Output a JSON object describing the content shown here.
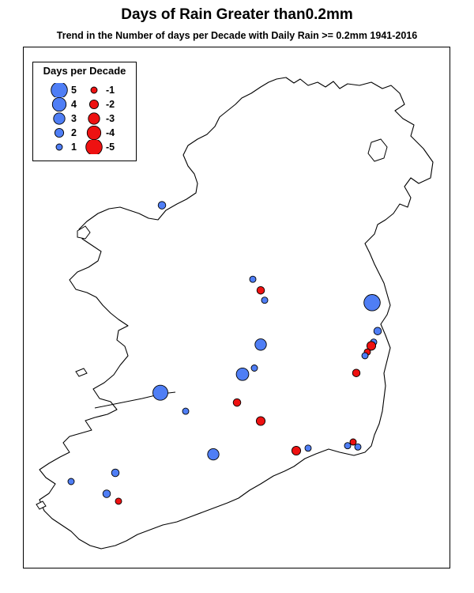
{
  "title": "Days of Rain Greater than0.2mm",
  "subtitle": "Trend in the Number of days per Decade with Daily Rain >= 0.2mm 1941-2016",
  "colors": {
    "positive": "#4f7ef5",
    "negative": "#ee1111",
    "outline": "#000000",
    "land": "#ffffff"
  },
  "legend": {
    "title": "Days per Decade",
    "positive": [
      {
        "label": "5",
        "value": 5
      },
      {
        "label": "4",
        "value": 4
      },
      {
        "label": "3",
        "value": 3
      },
      {
        "label": "2",
        "value": 2
      },
      {
        "label": "1",
        "value": 1
      }
    ],
    "negative": [
      {
        "label": "-1",
        "value": -1
      },
      {
        "label": "-2",
        "value": -2
      },
      {
        "label": "-3",
        "value": -3
      },
      {
        "label": "-4",
        "value": -4
      },
      {
        "label": "-5",
        "value": -5
      }
    ]
  },
  "stations": [
    {
      "lon": -8.9,
      "lat": 54.22,
      "value": 1.5
    },
    {
      "lon": -6.24,
      "lat": 53.43,
      "value": 5
    },
    {
      "lon": -7.75,
      "lat": 53.62,
      "value": 1
    },
    {
      "lon": -7.65,
      "lat": 53.53,
      "value": -1.5
    },
    {
      "lon": -7.6,
      "lat": 53.45,
      "value": 1
    },
    {
      "lon": -6.17,
      "lat": 53.2,
      "value": 1.5
    },
    {
      "lon": -6.22,
      "lat": 53.11,
      "value": 1
    },
    {
      "lon": -6.25,
      "lat": 53.08,
      "value": -2
    },
    {
      "lon": -6.3,
      "lat": 53.03,
      "value": -1
    },
    {
      "lon": -6.33,
      "lat": 53.0,
      "value": 1
    },
    {
      "lon": -7.65,
      "lat": 53.09,
      "value": 3
    },
    {
      "lon": -7.73,
      "lat": 52.9,
      "value": 1
    },
    {
      "lon": -7.88,
      "lat": 52.85,
      "value": 3.5
    },
    {
      "lon": -6.44,
      "lat": 52.86,
      "value": -1.5
    },
    {
      "lon": -8.92,
      "lat": 52.7,
      "value": 4.5
    },
    {
      "lon": -7.95,
      "lat": 52.62,
      "value": -1.5
    },
    {
      "lon": -8.6,
      "lat": 52.55,
      "value": 1
    },
    {
      "lon": -7.65,
      "lat": 52.47,
      "value": -2
    },
    {
      "lon": -6.48,
      "lat": 52.3,
      "value": -1
    },
    {
      "lon": -6.55,
      "lat": 52.27,
      "value": 1
    },
    {
      "lon": -6.42,
      "lat": 52.26,
      "value": 1
    },
    {
      "lon": -7.05,
      "lat": 52.25,
      "value": 1
    },
    {
      "lon": -7.2,
      "lat": 52.23,
      "value": -2
    },
    {
      "lon": -8.25,
      "lat": 52.2,
      "value": 3
    },
    {
      "lon": -9.49,
      "lat": 52.05,
      "value": 1.5
    },
    {
      "lon": -10.05,
      "lat": 51.98,
      "value": 1
    },
    {
      "lon": -9.6,
      "lat": 51.88,
      "value": 1.5
    },
    {
      "lon": -9.45,
      "lat": 51.82,
      "value": -1
    }
  ]
}
